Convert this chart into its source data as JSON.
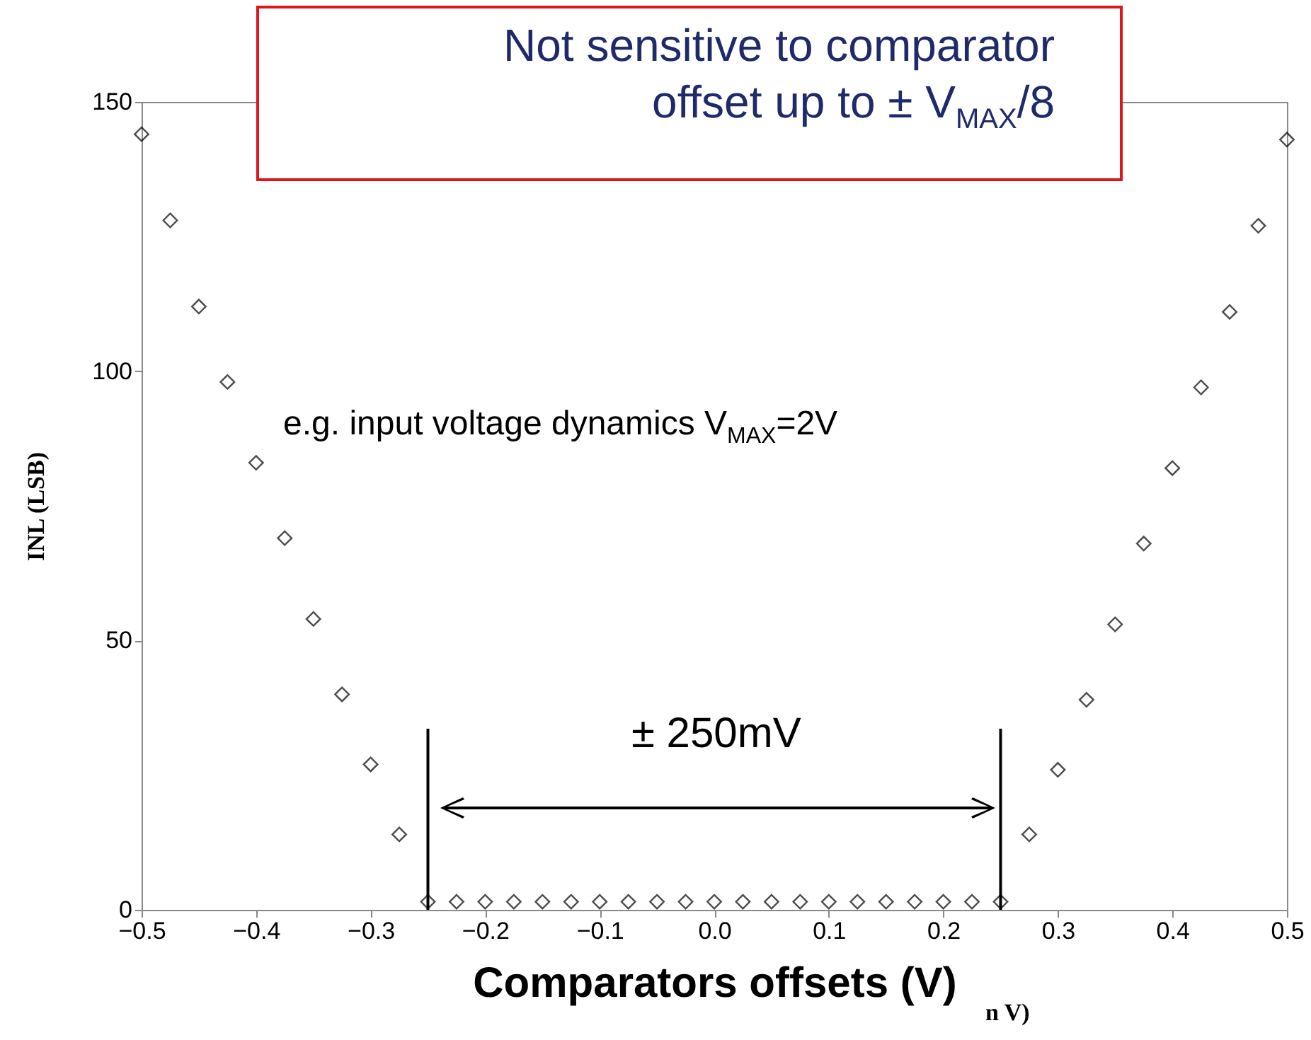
{
  "chart_data": {
    "type": "scatter",
    "title": "Not sensitive to comparator offset up to ± V$_{MAX}$/8",
    "xlabel": "Comparators offsets (V)",
    "ylabel": "INL (LSB)",
    "annotations": [
      "e.g. input voltage dynamics V$_{MAX}$=2V",
      "± 250mV",
      "n V)"
    ],
    "x": [
      -0.5,
      -0.475,
      -0.45,
      -0.425,
      -0.4,
      -0.375,
      -0.35,
      -0.325,
      -0.3,
      -0.275,
      -0.25,
      -0.225,
      -0.2,
      -0.175,
      -0.15,
      -0.125,
      -0.1,
      -0.075,
      -0.05,
      -0.025,
      0,
      0.025,
      0.05,
      0.075,
      0.1,
      0.125,
      0.15,
      0.175,
      0.2,
      0.225,
      0.25,
      0.275,
      0.3,
      0.325,
      0.35,
      0.375,
      0.4,
      0.425,
      0.45,
      0.475,
      0.5
    ],
    "series": [
      {
        "color": "#000000",
        "values": [
          144,
          128,
          112,
          98,
          83,
          69,
          54,
          40,
          27,
          14,
          1.5,
          1.5,
          1.5,
          1.5,
          1.5,
          1.5,
          1.5,
          1.5,
          1.5,
          1.5,
          1.5,
          1.5,
          1.5,
          1.5,
          1.5,
          1.5,
          1.5,
          1.5,
          1.5,
          1.5,
          1.5,
          14,
          26,
          39,
          53,
          68,
          82,
          97,
          111,
          127,
          143
        ]
      }
    ],
    "xlim": [
      -0.5,
      0.5
    ],
    "xticks": [
      -0.5,
      -0.4,
      -0.3,
      -0.2,
      -0.1,
      {
        "value": 0,
        "label": "0.0"
      },
      0.1,
      0.2,
      0.3,
      0.4,
      0.5
    ],
    "ylim": [
      0,
      150
    ],
    "yticks": [
      0,
      50,
      100,
      150
    ],
    "ref_lines": [
      {
        "axis": "x",
        "value": -0.25,
        "color": "#000000"
      },
      {
        "axis": "x",
        "value": 0.25,
        "color": "#000000"
      }
    ],
    "marker": "diamond",
    "grid": false
  }
}
